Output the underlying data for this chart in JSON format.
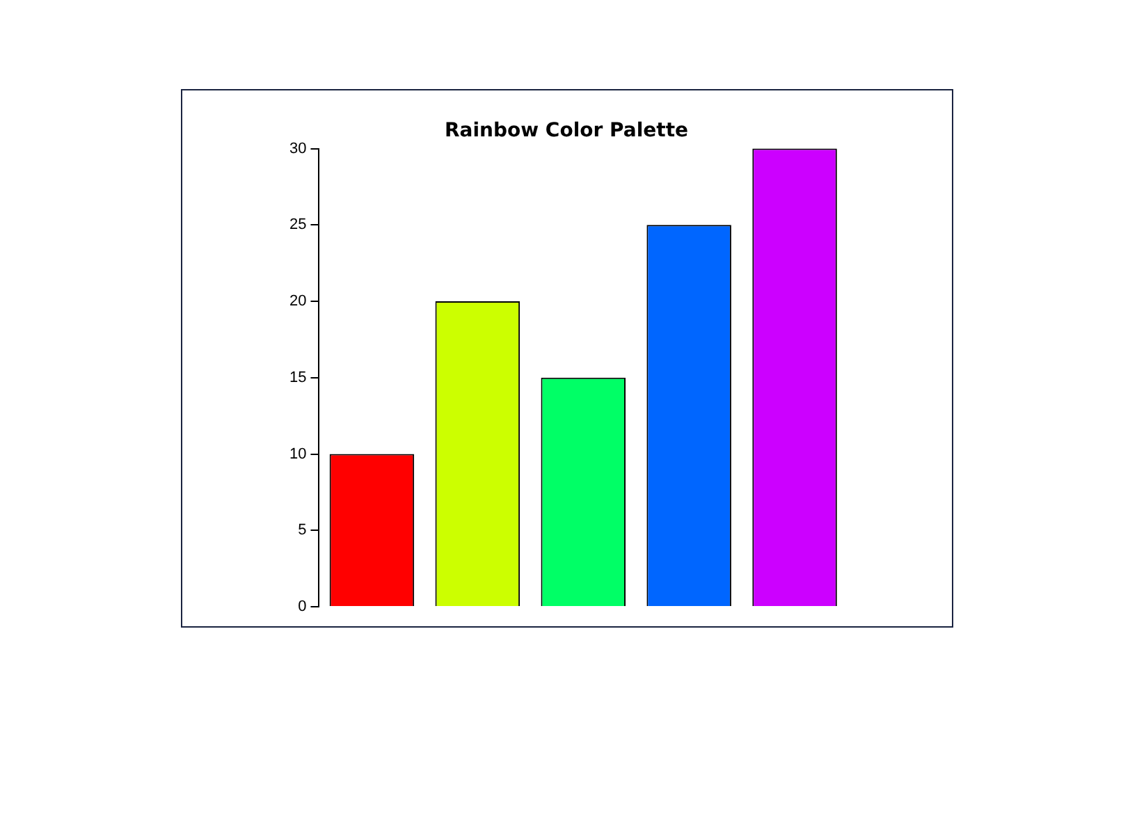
{
  "chart_data": {
    "type": "bar",
    "title": "Rainbow Color Palette",
    "categories": [
      null,
      null,
      null,
      null,
      null
    ],
    "values": [
      10,
      20,
      15,
      25,
      30
    ],
    "colors": [
      "#ff0000",
      "#ccff00",
      "#00ff66",
      "#0066ff",
      "#cc00ff"
    ],
    "ylim": [
      0,
      30
    ],
    "yticks": [
      0,
      5,
      10,
      15,
      20,
      25,
      30
    ],
    "grid": false,
    "legend": false
  }
}
